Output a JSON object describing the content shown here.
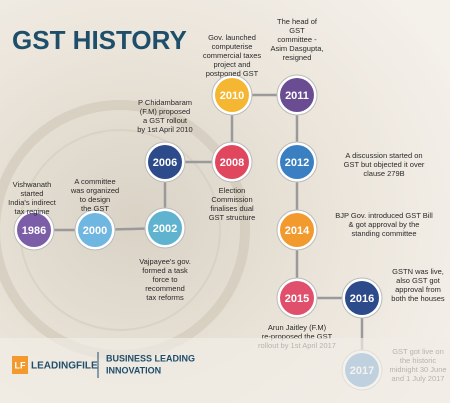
{
  "header": {
    "title": "GST HISTORY"
  },
  "nodes": [
    {
      "year": "1986",
      "lines": [
        "Vishwanath",
        "started",
        "India's indirect",
        "tax regime"
      ]
    },
    {
      "year": "2000",
      "lines": [
        "A committee",
        "was organized",
        "to design",
        "the GST"
      ]
    },
    {
      "year": "2002",
      "lines": [
        "Vajpayee's gov.",
        "formed a task",
        "force to",
        "recommend",
        "tax reforms"
      ]
    },
    {
      "year": "2006",
      "lines": [
        "P Chidambaram",
        "(F.M) proposed",
        "a GST rollout",
        "by 1st April 2010"
      ]
    },
    {
      "year": "2008",
      "lines": [
        "Election",
        "Commission",
        "finalises dual",
        "GST structure"
      ]
    },
    {
      "year": "2010",
      "lines": [
        "Gov. launched",
        "computerise",
        "commercial taxes",
        "project and",
        "postponed GST"
      ]
    },
    {
      "year": "2011",
      "lines": [
        "The head of",
        "GST",
        "committee -",
        "Asim Dasgupta,",
        "resigned"
      ]
    },
    {
      "year": "2012",
      "lines": [
        "A discussion started on",
        "GST but objected it over",
        "clause 279B"
      ]
    },
    {
      "year": "2014",
      "lines": [
        "BJP Gov. introduced GST Bill",
        "& got approval by the",
        "standing committee"
      ]
    },
    {
      "year": "2015",
      "lines": [
        "Arun Jaitley (F.M)",
        "re-proposed the GST",
        "rollout by 1st April 2017"
      ]
    },
    {
      "year": "2016",
      "lines": [
        "GSTN was live,",
        "also GST got",
        "approval from",
        "both the houses"
      ]
    },
    {
      "year": "2017",
      "lines": [
        "GST got live on",
        "the historic",
        "midnight 30 June",
        "and 1 July 2017"
      ]
    }
  ],
  "footer": {
    "brand": "LEADINGFILE",
    "logo": "LF",
    "tagline": [
      "BUSINESS LEADING",
      "INNOVATION"
    ]
  }
}
